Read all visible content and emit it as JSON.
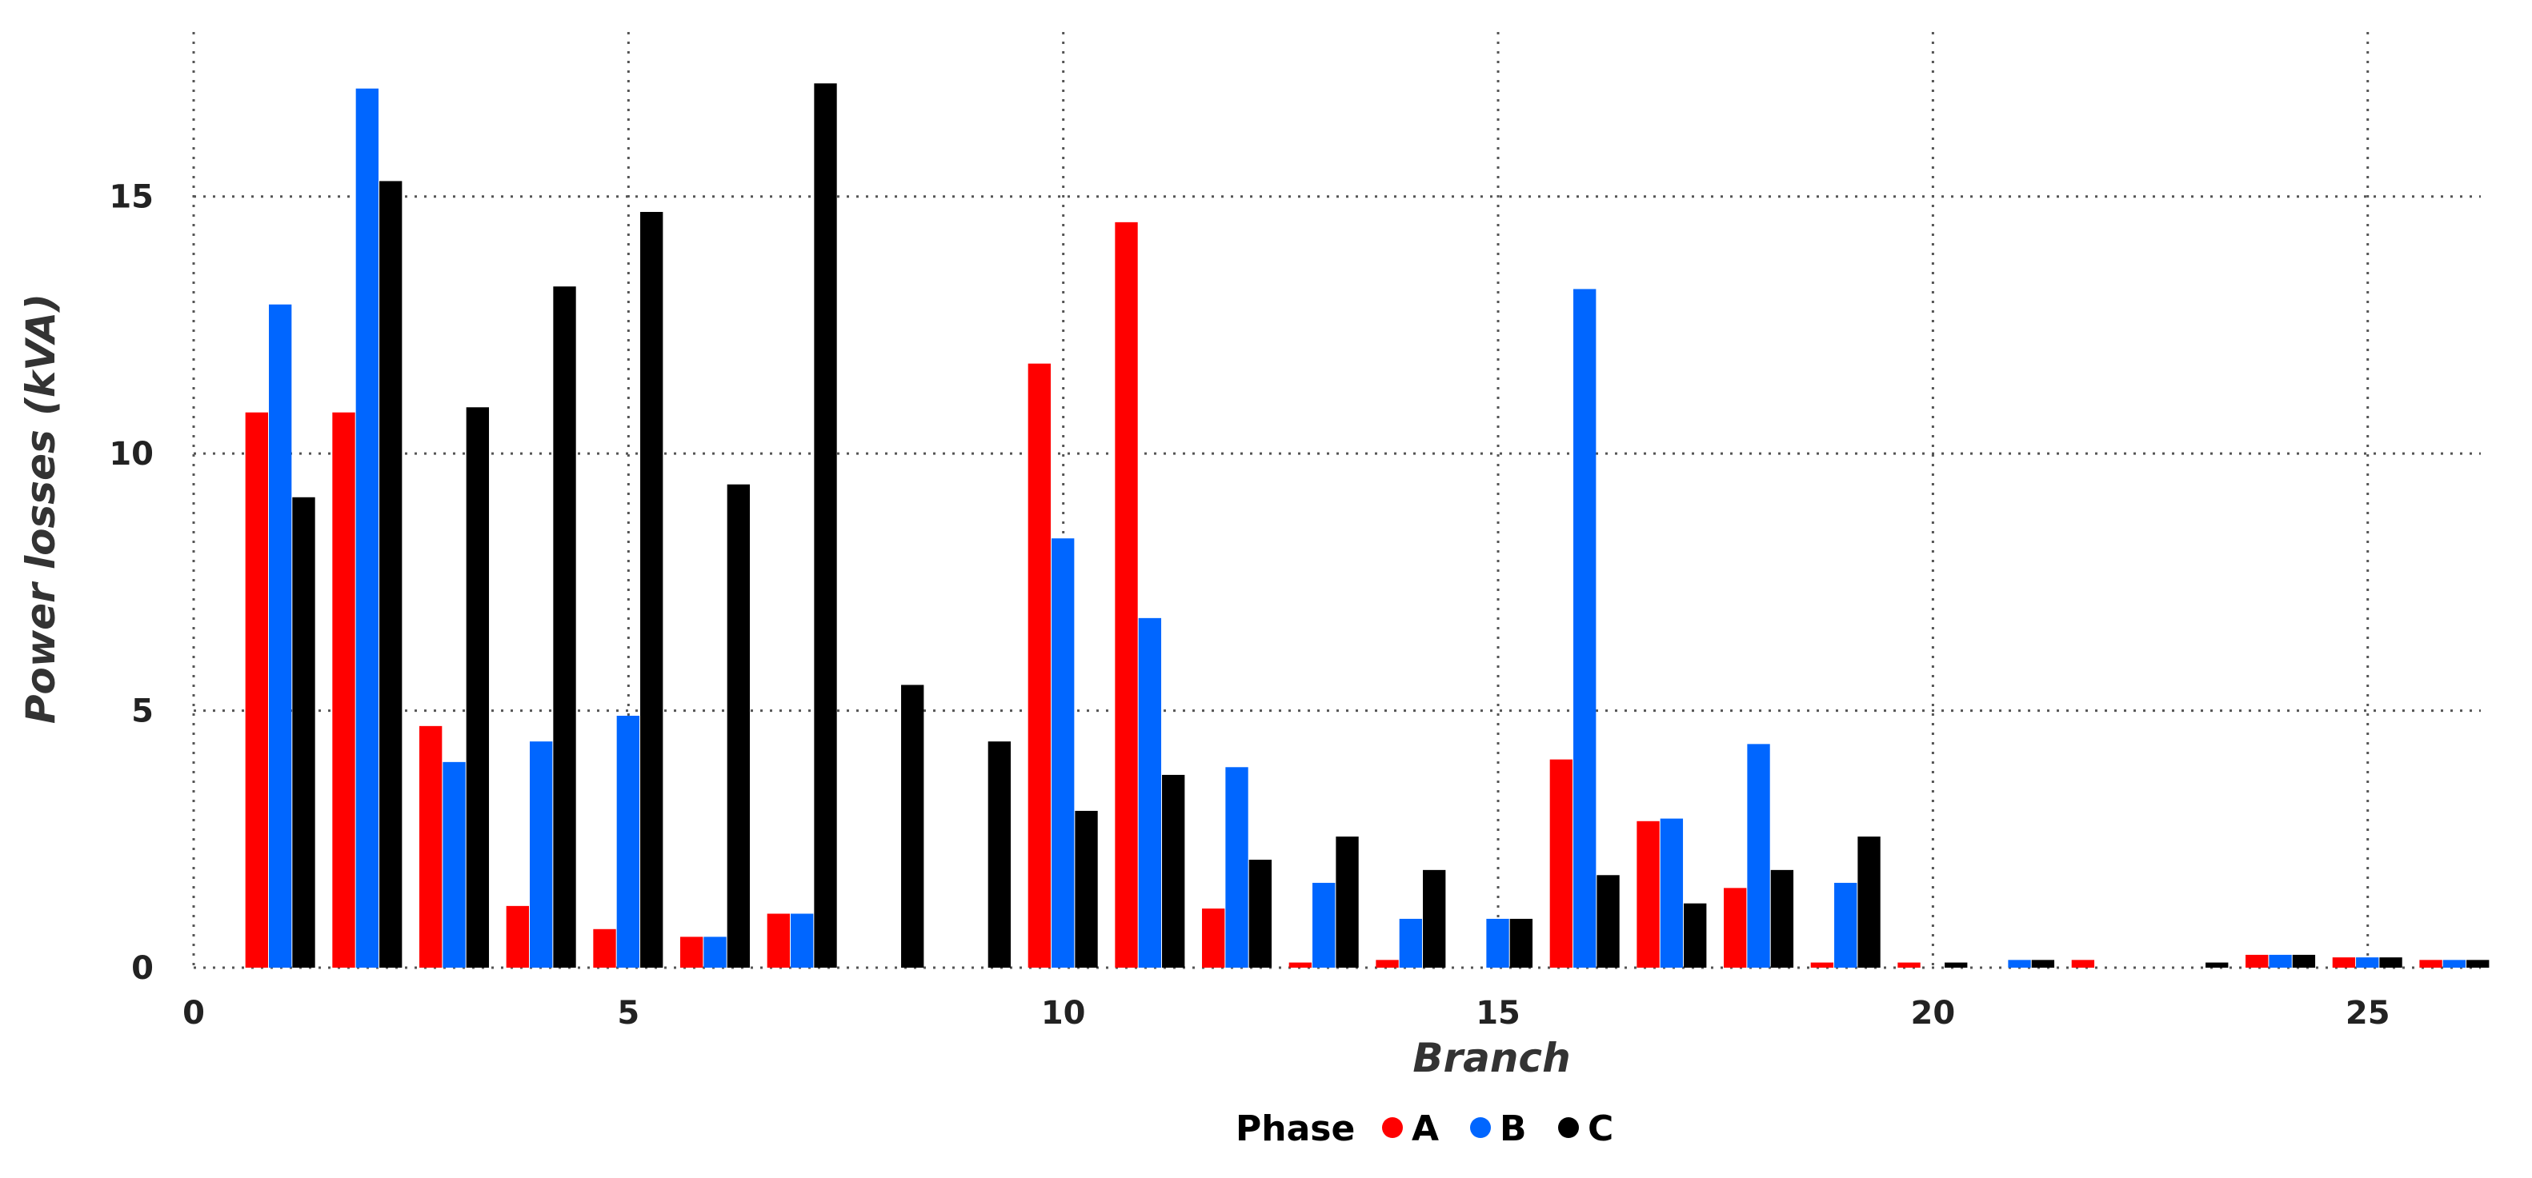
{
  "chart_data": {
    "type": "bar",
    "title": "",
    "xlabel": "Branch",
    "ylabel": "Power losses (kVA)",
    "xlim": [
      0,
      26.3
    ],
    "ylim": [
      0,
      18.2
    ],
    "xticks": [
      0,
      5,
      10,
      15,
      20,
      25
    ],
    "yticks": [
      0,
      5,
      10,
      15
    ],
    "grid": true,
    "legend": {
      "title": "Phase",
      "position": "bottom-center"
    },
    "x": [
      1,
      2,
      3,
      4,
      5,
      6,
      7,
      8,
      9,
      10,
      11,
      12,
      13,
      14,
      15,
      16,
      17,
      18,
      19,
      20,
      21,
      22,
      23,
      24,
      25,
      26
    ],
    "series": [
      {
        "name": "A",
        "color": "#ff0000",
        "values": [
          10.8,
          10.8,
          4.7,
          1.2,
          0.75,
          0.6,
          1.05,
          0,
          0,
          11.75,
          14.5,
          1.15,
          0.1,
          0.15,
          0,
          4.05,
          2.85,
          1.55,
          0.1,
          0.1,
          0,
          0.15,
          0,
          0.25,
          0.2,
          0.15
        ]
      },
      {
        "name": "B",
        "color": "#0066ff",
        "values": [
          12.9,
          17.1,
          4.0,
          4.4,
          4.9,
          0.6,
          1.05,
          0,
          0,
          8.35,
          6.8,
          3.9,
          1.65,
          0.95,
          0.95,
          13.2,
          2.9,
          4.35,
          1.65,
          0,
          0.15,
          0,
          0,
          0.25,
          0.2,
          0.15
        ]
      },
      {
        "name": "C",
        "color": "#000000",
        "values": [
          9.15,
          15.3,
          10.9,
          13.25,
          14.7,
          9.4,
          17.2,
          5.5,
          4.4,
          3.05,
          3.75,
          2.1,
          2.55,
          1.9,
          0.95,
          1.8,
          1.25,
          1.9,
          2.55,
          0.1,
          0.15,
          0,
          0.1,
          0.25,
          0.2,
          0.15
        ]
      }
    ]
  }
}
